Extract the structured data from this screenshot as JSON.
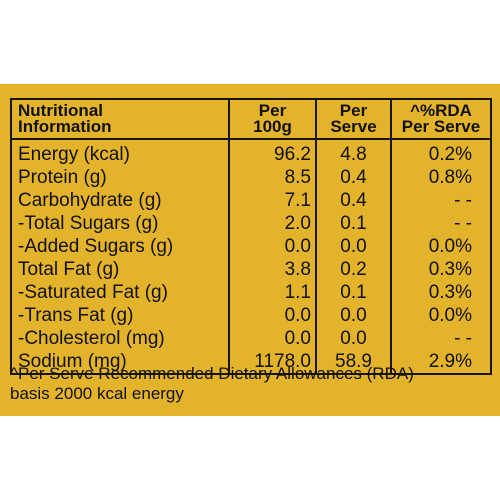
{
  "table": {
    "headers": {
      "name_line1": "Nutritional",
      "name_line2": "Information",
      "per100_line1": "Per",
      "per100_line2": "100g",
      "serve_line1": "Per",
      "serve_line2": "Serve",
      "rda_line1": "^%RDA",
      "rda_line2": "Per Serve"
    },
    "rows": [
      {
        "name": "Energy (kcal)",
        "per100": "96.2",
        "serve": "4.8",
        "rda": "0.2%"
      },
      {
        "name": "Protein (g)",
        "per100": "8.5",
        "serve": "0.4",
        "rda": "0.8%"
      },
      {
        "name": "Carbohydrate (g)",
        "per100": "7.1",
        "serve": "0.4",
        "rda": "- -"
      },
      {
        "name": "-Total Sugars (g)",
        "per100": "2.0",
        "serve": "0.1",
        "rda": "- -"
      },
      {
        "name": "-Added Sugars (g)",
        "per100": "0.0",
        "serve": "0.0",
        "rda": "0.0%"
      },
      {
        "name": "Total Fat (g)",
        "per100": "3.8",
        "serve": "0.2",
        "rda": "0.3%"
      },
      {
        "name": "-Saturated Fat (g)",
        "per100": "1.1",
        "serve": "0.1",
        "rda": "0.3%"
      },
      {
        "name": "-Trans Fat (g)",
        "per100": "0.0",
        "serve": "0.0",
        "rda": "0.0%"
      },
      {
        "name": "-Cholesterol (mg)",
        "per100": "0.0",
        "serve": "0.0",
        "rda": "- -"
      },
      {
        "name": "Sodium (mg)",
        "per100": "1178.0",
        "serve": "58.9",
        "rda": "2.9%"
      }
    ]
  },
  "footnote": {
    "line1": "^Per Serve Recommended Dietary Allowances (RDA)",
    "line2": "basis 2000 kcal energy"
  },
  "colors": {
    "background": "#e3b32b",
    "text": "#111111",
    "border": "#1a1408"
  }
}
